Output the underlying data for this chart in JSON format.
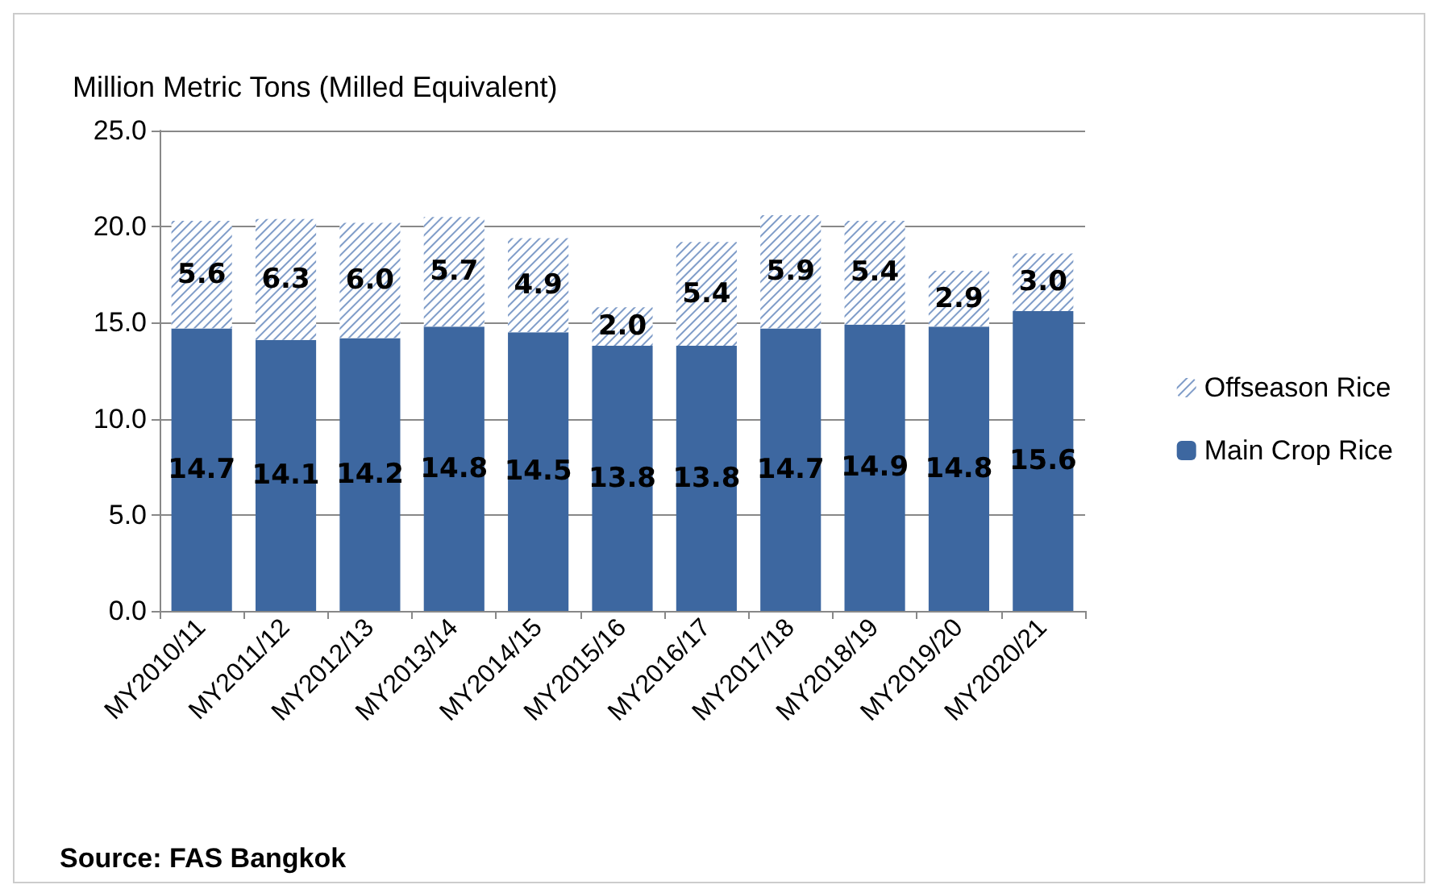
{
  "chart_data": {
    "type": "bar",
    "stacked": true,
    "ylabel": "Million Metric Tons (Milled Equivalent)",
    "categories": [
      "MY2010/11",
      "MY2011/12",
      "MY2012/13",
      "MY2013/14",
      "MY2014/15",
      "MY2015/16",
      "MY2016/17",
      "MY2017/18",
      "MY2018/19",
      "MY2019/20",
      "MY2020/21"
    ],
    "series": [
      {
        "name": "Main Crop Rice",
        "color": "#3d67a0",
        "values": [
          14.7,
          14.1,
          14.2,
          14.8,
          14.5,
          13.8,
          13.8,
          14.7,
          14.9,
          14.8,
          15.6
        ],
        "value_labels": [
          "14.7",
          "14.1",
          "14.2",
          "14.8",
          "14.5",
          "13.8",
          "13.8",
          "14.7",
          "14.9",
          "14.8",
          "15.6"
        ]
      },
      {
        "name": "Offseason Rice",
        "color": "#7f9cc8",
        "values": [
          5.6,
          6.3,
          6.0,
          5.7,
          4.9,
          2.0,
          5.4,
          5.9,
          5.4,
          2.9,
          3.0
        ],
        "value_labels": [
          "5.6",
          "6.3",
          "6.0",
          "5.7",
          "4.9",
          "2.0",
          "5.4",
          "5.9",
          "5.4",
          "2.9",
          "3.0"
        ]
      }
    ],
    "ylim": [
      0,
      25
    ],
    "yticks": [
      {
        "value": 0,
        "label": "0.0"
      },
      {
        "value": 5,
        "label": "5.0"
      },
      {
        "value": 10,
        "label": "10.0"
      },
      {
        "value": 15,
        "label": "15.0"
      },
      {
        "value": 20,
        "label": "20.0"
      },
      {
        "value": 25,
        "label": "25.0"
      }
    ],
    "grid": "y",
    "legend": "right",
    "annotations": [
      "Source: FAS Bangkok"
    ]
  }
}
